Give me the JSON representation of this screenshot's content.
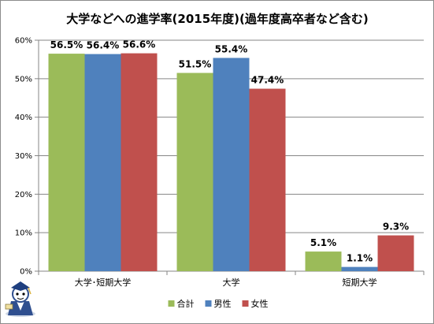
{
  "chart_data": {
    "type": "bar",
    "title": "大学などへの進学率(2015年度)(過年度高卒者など含む)",
    "categories": [
      "大学･短期大学",
      "大学",
      "短期大学"
    ],
    "series": [
      {
        "name": "合計",
        "values": [
          56.5,
          51.5,
          5.1
        ],
        "labels": [
          "56.5%",
          "51.5%",
          "5.1%"
        ],
        "color": "#9bbb59"
      },
      {
        "name": "男性",
        "values": [
          56.4,
          55.4,
          1.1
        ],
        "labels": [
          "56.4%",
          "55.4%",
          "1.1%"
        ],
        "color": "#4f81bd"
      },
      {
        "name": "女性",
        "values": [
          56.6,
          47.4,
          9.3
        ],
        "labels": [
          "56.6%",
          "47.4%",
          "9.3%"
        ],
        "color": "#c0504d"
      }
    ],
    "yticks": [
      "0%",
      "10%",
      "20%",
      "30%",
      "40%",
      "50%",
      "60%"
    ],
    "ylim": [
      0,
      60
    ],
    "grid": true,
    "legend_position": "bottom"
  },
  "mascot_icon": "cartoon-character-icon"
}
